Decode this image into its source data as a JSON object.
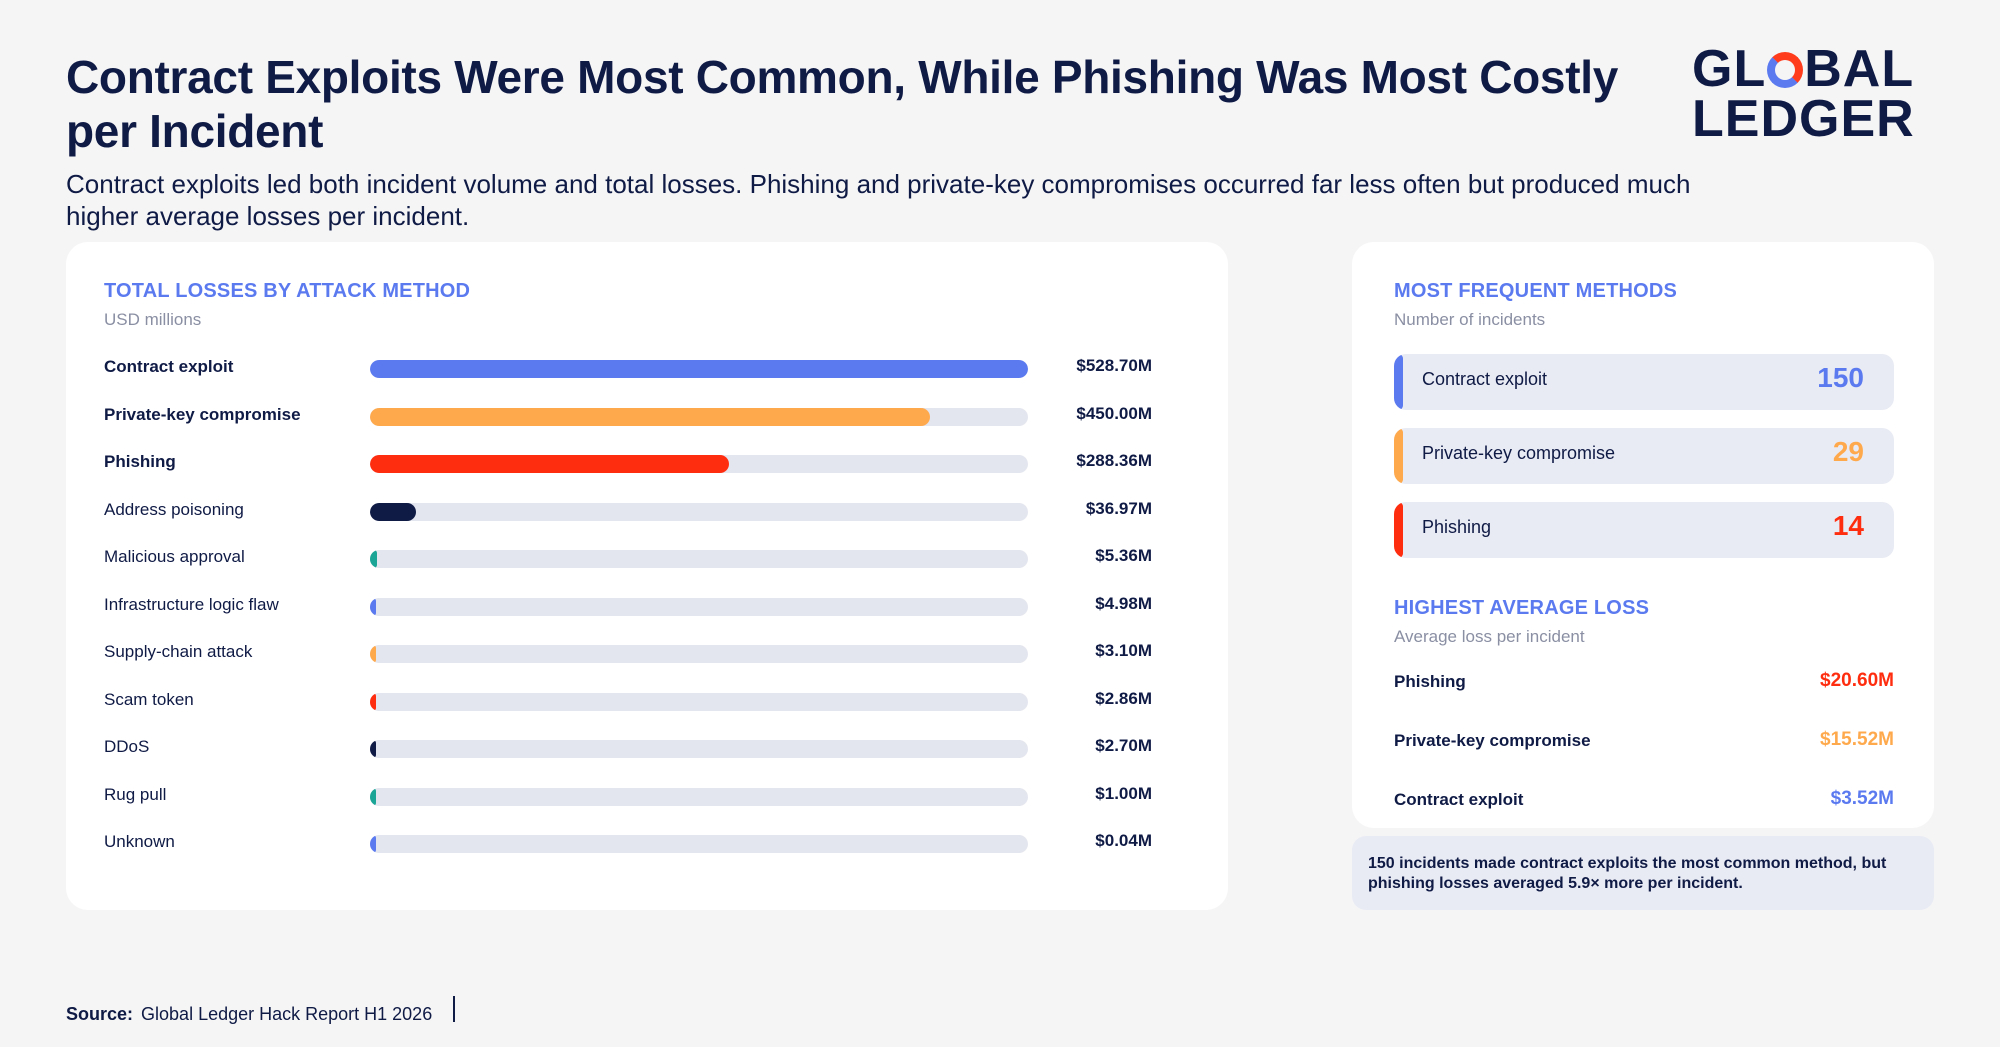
{
  "title": "Contract Exploits Were Most Common, While Phishing Was Most Costly per Incident",
  "subtitle": "Contract exploits led both incident volume and total losses. Phishing and private-key compromises occurred far less often but produced much higher average losses per incident.",
  "logo": {
    "line1_a": "GL",
    "line1_b": "BAL",
    "line2": "LEDGER",
    "ring_colors": [
      "#5b7af0",
      "#ff3d1c"
    ]
  },
  "colors": {
    "navy": "#0f1a45",
    "blue": "#5b7af0",
    "orange": "#ffa94d",
    "red": "#ff2d0f",
    "teal": "#1aa596",
    "track": "#e4e6ef",
    "card": "#ffffff",
    "background": "#f5f5f6"
  },
  "losses_panel": {
    "title": "TOTAL LOSSES BY ATTACK METHOD",
    "subtitle": "USD millions"
  },
  "chart_data": [
    {
      "type": "bar",
      "orientation": "horizontal",
      "title": "TOTAL LOSSES BY ATTACK METHOD",
      "subtitle": "USD millions",
      "xlim": [
        0,
        528.7
      ],
      "categories": [
        "Contract exploit",
        "Private-key compromise",
        "Phishing",
        "Address poisoning",
        "Malicious approval",
        "Infrastructure logic flaw",
        "Supply-chain attack",
        "Scam token",
        "DDoS",
        "Rug pull",
        "Unknown"
      ],
      "values": [
        528.7,
        450.0,
        288.36,
        36.97,
        5.36,
        4.98,
        3.1,
        2.86,
        2.7,
        1.0,
        0.04
      ],
      "value_labels": [
        "$528.70M",
        "$450.00M",
        "$288.36M",
        "$36.97M",
        "$5.36M",
        "$4.98M",
        "$3.10M",
        "$2.86M",
        "$2.70M",
        "$1.00M",
        "$0.04M"
      ],
      "bar_colors": [
        "#5b7af0",
        "#ffa94d",
        "#ff2d0f",
        "#0f1a45",
        "#1aa596",
        "#5b7af0",
        "#ffa94d",
        "#ff2d0f",
        "#0f1a45",
        "#1aa596",
        "#5b7af0"
      ],
      "bold_labels": [
        true,
        true,
        true,
        false,
        false,
        false,
        false,
        false,
        false,
        false,
        false
      ],
      "grid": false
    },
    {
      "type": "table",
      "title": "MOST FREQUENT METHODS",
      "subtitle": "Number of incidents",
      "categories": [
        "Contract exploit",
        "Private-key compromise",
        "Phishing"
      ],
      "values": [
        150,
        29,
        14
      ],
      "colors": [
        "#5b7af0",
        "#ffa94d",
        "#ff2d0f"
      ]
    },
    {
      "type": "table",
      "title": "HIGHEST AVERAGE LOSS",
      "subtitle": "Average loss per incident",
      "categories": [
        "Phishing",
        "Private-key compromise",
        "Contract exploit"
      ],
      "values": [
        20.6,
        15.52,
        3.52
      ],
      "value_labels": [
        "$20.60M",
        "$15.52M",
        "$3.52M"
      ],
      "colors": [
        "#ff2d0f",
        "#ffa94d",
        "#5b7af0"
      ]
    }
  ],
  "note": "150 incidents made contract exploits the most common method, but phishing losses averaged 5.9× more per incident.",
  "source": {
    "label": "Source:",
    "text": "Global Ledger Hack Report H1 2026"
  }
}
